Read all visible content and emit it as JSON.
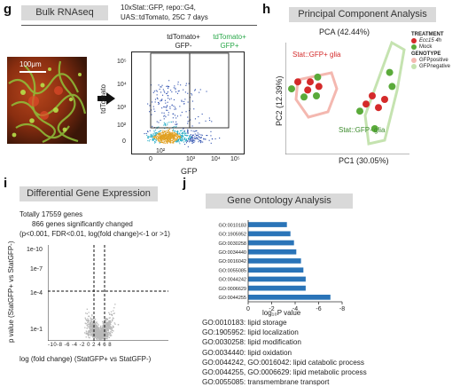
{
  "panel_g": {
    "letter": "g",
    "header": "Bulk RNAseq",
    "genotype_lines": [
      "10xStat::GFP, repo::G4,",
      "UAS::tdTomato,  25C 7 days"
    ],
    "scale_bar": "100μm",
    "gate_left": [
      "tdTomato+",
      "GFP-"
    ],
    "gate_right": [
      "tdTomato+",
      "GFP+"
    ],
    "ylabel": "tdTomato",
    "xlabel": "GFP",
    "yticks": [
      "10⁵",
      "10⁴",
      "10³",
      "10²",
      "0"
    ],
    "xticks": [
      "0",
      "10³",
      "10⁴",
      "10⁵"
    ],
    "xticks_extra": "10²"
  },
  "panel_h": {
    "letter": "h",
    "header": "Principal Component Analysis",
    "title": "PCA (42.44%)",
    "ylabel": "PC2 (12.39%)",
    "xlabel": "PC1 (30.05%)",
    "label_glia_red": "Stat::GFP+ glia",
    "label_glia_green": "Stat::GFP- glia",
    "legend": {
      "treatment_title": "TREATMENT",
      "treatment": [
        "Ecc15 4h",
        "Mock"
      ],
      "genotype_title": "GENOTYPE",
      "genotype": [
        "GFPpositive",
        "GFPnegative"
      ]
    },
    "colors": {
      "red": "#d42a2a",
      "green": "#5aaa3a",
      "pink": "#f4b8b0",
      "lightgreen": "#c5e3b0"
    }
  },
  "panel_i": {
    "letter": "i",
    "header": "Differential Gene Expression",
    "text_lines": [
      "Totally 17559 genes",
      "866 genes significantly changed",
      "(p<0.001, FDR<0.01, log(fold change)<-1 or >1)"
    ],
    "ylabel": "p value (StatGFP+ vs StatGFP-)",
    "xlabel": "log (fold change) (StatGFP+ vs StatGFP-)",
    "yticks": [
      "1e-10",
      "1e-7",
      "1e-4",
      "1e-1"
    ],
    "xticks": "-10-8 -6 -4 -2 0 2 4 6 8"
  },
  "panel_j": {
    "letter": "j",
    "header": "Gene Ontology Analysis",
    "xlabel": "log₁₀P value",
    "xticks": [
      "0",
      "-2",
      "-4",
      "-6",
      "-8"
    ],
    "bar_color": "#2a74b8",
    "go_terms": [
      "GO:0010183: lipid storage",
      "GO:1905952: lipid localization",
      "GO:0030258: lipid modification",
      "GO:0034440: lipid oxidation",
      "GO:0044242, GO:0016042: lipid catabolic process",
      "GO:0044255, GO:0006629: lipid metabolic process",
      "GO:0055085: transmembrane transport"
    ]
  },
  "chart_data": [
    {
      "type": "bar",
      "title": "Gene Ontology Analysis",
      "orientation": "horizontal",
      "xlabel": "log10P value",
      "xlim": [
        0,
        -8
      ],
      "categories": [
        "GO:0010183",
        "GO:1905952",
        "GO:0030258",
        "GO:0034440",
        "GO:0016042",
        "GO:0055085",
        "GO:0044242",
        "GO:0006629",
        "GO:0044255"
      ],
      "values": [
        -3.3,
        -3.6,
        -3.9,
        -4.1,
        -4.5,
        -4.7,
        -4.9,
        -4.9,
        -7.0
      ]
    },
    {
      "type": "scatter",
      "title": "PCA (42.44%)",
      "xlabel": "PC1 (30.05%)",
      "ylabel": "PC2 (12.39%)",
      "series": [
        {
          "name": "Ecc15 4h",
          "points": [
            [
              0.1,
              0.62
            ],
            [
              0.2,
              0.62
            ],
            [
              0.27,
              0.58
            ],
            [
              0.18,
              0.55
            ],
            [
              0.7,
              0.5
            ],
            [
              0.8,
              0.47
            ],
            [
              0.65,
              0.43
            ],
            [
              0.75,
              0.4
            ]
          ]
        },
        {
          "name": "Mock",
          "points": [
            [
              0.26,
              0.66
            ],
            [
              0.05,
              0.56
            ],
            [
              0.25,
              0.5
            ],
            [
              0.15,
              0.49
            ],
            [
              0.84,
              0.7
            ],
            [
              0.86,
              0.58
            ],
            [
              0.6,
              0.37
            ],
            [
              0.72,
              0.22
            ]
          ]
        }
      ]
    }
  ]
}
